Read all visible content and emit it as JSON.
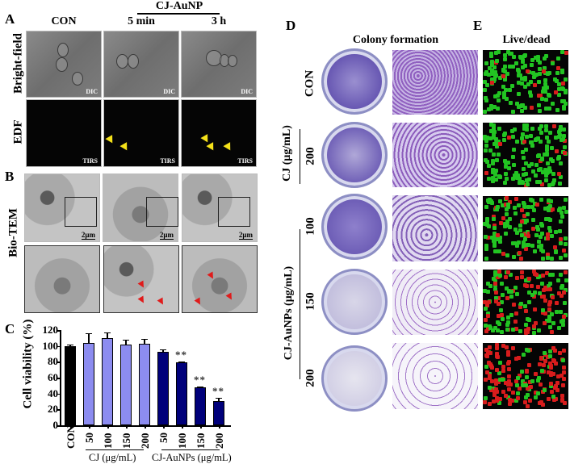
{
  "panels": {
    "A": {
      "letter": "A",
      "group_header": "CJ-AuNP",
      "columns": [
        "CON",
        "5 min",
        "3 h"
      ],
      "rows": [
        "Bright-field",
        "EDF"
      ],
      "row_tags": [
        "DIC",
        "TIRS"
      ]
    },
    "B": {
      "letter": "B",
      "row_label": "Bio-TEM",
      "scale_bar": "2μm"
    },
    "C": {
      "letter": "C"
    },
    "D": {
      "letter": "D",
      "header": "Colony formation",
      "row_labels": [
        "CON",
        "200",
        "100",
        "150",
        "200"
      ],
      "group_labels": [
        "CJ (μg/mL)",
        "CJ-AuNPs (μg/mL)"
      ]
    },
    "E": {
      "letter": "E",
      "header": "Live/dead"
    }
  },
  "colors": {
    "con_bar": "#000000",
    "cj_bar": "#8c8cf0",
    "cjaunp_bar": "#00007a",
    "live": "#22c422",
    "dead": "#d81c1c",
    "crystal_violet": "#7a5ab8",
    "arrow_yellow": "#f5e21a",
    "arrow_red": "#e01b1b"
  },
  "chart_data": {
    "type": "bar",
    "title": "",
    "xlabel": "",
    "ylabel": "Cell viability (%)",
    "ylim": [
      0,
      120
    ],
    "yticks": [
      "0",
      "20",
      "40",
      "60",
      "80",
      "100",
      "120"
    ],
    "categories": [
      "CON",
      "50",
      "100",
      "150",
      "200",
      "50",
      "100",
      "150",
      "200"
    ],
    "groups": [
      {
        "name": "CON",
        "indices": [
          0
        ]
      },
      {
        "name": "CJ (μg/mL)",
        "indices": [
          1,
          2,
          3,
          4
        ]
      },
      {
        "name": "CJ-AuNPs (μg/mL)",
        "indices": [
          5,
          6,
          7,
          8
        ]
      }
    ],
    "values": [
      100,
      104,
      110,
      102,
      103,
      93,
      79,
      48,
      31
    ],
    "errors": [
      2,
      12,
      7,
      6,
      6,
      3,
      1.5,
      0.5,
      4
    ],
    "significance": [
      "",
      "",
      "",
      "",
      "",
      "",
      "**",
      "**",
      "**"
    ],
    "bar_colors": [
      "#000000",
      "#8c8cf0",
      "#8c8cf0",
      "#8c8cf0",
      "#8c8cf0",
      "#00007a",
      "#00007a",
      "#00007a",
      "#00007a"
    ],
    "grid": false,
    "legend": "none"
  }
}
